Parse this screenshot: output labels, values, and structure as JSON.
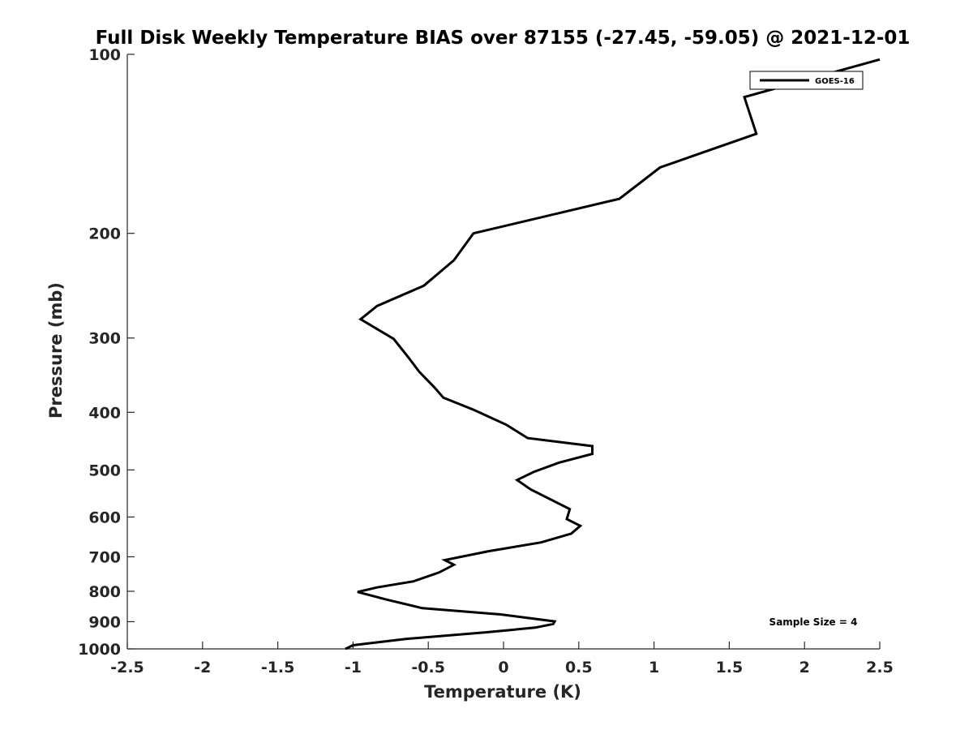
{
  "chart_data": {
    "type": "line",
    "title": "Full Disk Weekly Temperature BIAS over 87155 (-27.45, -59.05) @ 2021-12-01",
    "xlabel": "Temperature (K)",
    "ylabel": "Pressure (mb)",
    "xlim": [
      -2.5,
      2.5
    ],
    "ylim": [
      100,
      1000
    ],
    "y_scale": "log",
    "y_reversed": true,
    "grid": false,
    "legend_position": "top-right",
    "x_ticks": [
      "-2.5",
      "-2",
      "-1.5",
      "-1",
      "-0.5",
      "0",
      "0.5",
      "1",
      "1.5",
      "2",
      "2.5"
    ],
    "y_ticks": [
      "100",
      "200",
      "300",
      "400",
      "500",
      "600",
      "700",
      "800",
      "900",
      "1000"
    ],
    "annotation": "Sample Size = 4",
    "line_color": "#000000",
    "series": [
      {
        "name": "GOES-16",
        "x": [
          2.5,
          1.6,
          1.68,
          1.04,
          0.77,
          -0.2,
          -0.33,
          -0.53,
          -0.84,
          -0.95,
          -0.73,
          -0.63,
          -0.56,
          -0.46,
          -0.4,
          -0.2,
          0.02,
          0.16,
          0.59,
          0.59,
          0.37,
          0.2,
          0.09,
          0.18,
          0.44,
          0.42,
          0.51,
          0.45,
          0.25,
          -0.1,
          -0.39,
          -0.33,
          -0.43,
          -0.6,
          -0.84,
          -0.97,
          -0.78,
          -0.54,
          -0.02,
          0.34,
          0.33,
          0.21,
          -0.12,
          -0.65,
          -1.0,
          -1.05
        ],
        "y": [
          102,
          118,
          136,
          155,
          175,
          200,
          222,
          245,
          265,
          279,
          301,
          324,
          342,
          363,
          378,
          396,
          420,
          442,
          456,
          470,
          486,
          504,
          520,
          539,
          582,
          605,
          621,
          640,
          662,
          685,
          709,
          722,
          744,
          770,
          788,
          802,
          826,
          854,
          875,
          899,
          908,
          921,
          938,
          962,
          986,
          1000
        ]
      }
    ]
  }
}
